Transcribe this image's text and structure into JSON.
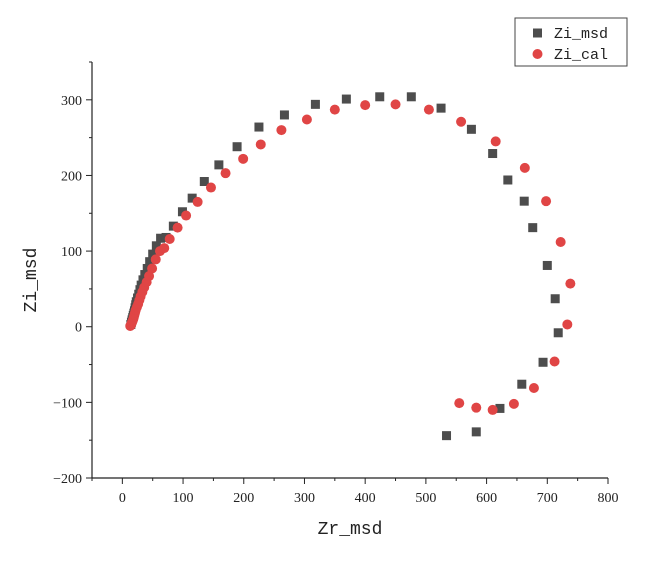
{
  "chart_data": {
    "type": "scatter",
    "title": "",
    "xlabel": "Zr_msd",
    "ylabel": "Zi_msd",
    "xlim": [
      -50,
      800
    ],
    "ylim": [
      -200,
      350
    ],
    "xticks": [
      0,
      100,
      200,
      300,
      400,
      500,
      600,
      700,
      800
    ],
    "yticks": [
      -200,
      -100,
      0,
      100,
      200,
      300
    ],
    "grid": false,
    "legend": "top-right",
    "series": [
      {
        "name": "Zi_msd",
        "marker": "square",
        "color": "#4d4d4d",
        "x": [
          14,
          15,
          16,
          17,
          18,
          19,
          20,
          21,
          22,
          23,
          25,
          27,
          29,
          31,
          34,
          37,
          41,
          45,
          50,
          56,
          63,
          72,
          84,
          99,
          115,
          135,
          159,
          189,
          225,
          267,
          318,
          369,
          424,
          476,
          525,
          575,
          610,
          635,
          662,
          676,
          700,
          713,
          718,
          693,
          658,
          622,
          583,
          534
        ],
        "y": [
          3,
          6,
          9,
          12,
          15,
          18,
          21,
          25,
          29,
          33,
          38,
          43,
          49,
          55,
          62,
          69,
          77,
          86,
          96,
          107,
          117,
          118,
          133,
          152,
          170,
          192,
          214,
          238,
          264,
          280,
          294,
          301,
          304,
          304,
          289,
          261,
          229,
          194,
          166,
          131,
          81,
          37,
          -8,
          -47,
          -76,
          -108,
          -139,
          -144
        ]
      },
      {
        "name": "Zi_cal",
        "marker": "circle",
        "color": "#e04545",
        "x": [
          13,
          14,
          15,
          16,
          17,
          18,
          19,
          20,
          21,
          22,
          24,
          26,
          28,
          30,
          33,
          36,
          40,
          44,
          49,
          55,
          62,
          69,
          78,
          91,
          105,
          124,
          146,
          170,
          199,
          228,
          262,
          304,
          350,
          400,
          450,
          505,
          558,
          615,
          663,
          698,
          722,
          738,
          733,
          712,
          678,
          645,
          610,
          583,
          555
        ],
        "y": [
          1,
          2,
          4,
          6,
          8,
          10,
          13,
          16,
          19,
          22,
          26,
          30,
          35,
          40,
          46,
          52,
          59,
          67,
          77,
          89,
          100,
          104,
          116,
          131,
          147,
          165,
          184,
          203,
          222,
          241,
          260,
          274,
          287,
          293,
          294,
          287,
          271,
          245,
          210,
          166,
          112,
          57,
          3,
          -46,
          -81,
          -102,
          -110,
          -107,
          -101
        ]
      }
    ]
  }
}
